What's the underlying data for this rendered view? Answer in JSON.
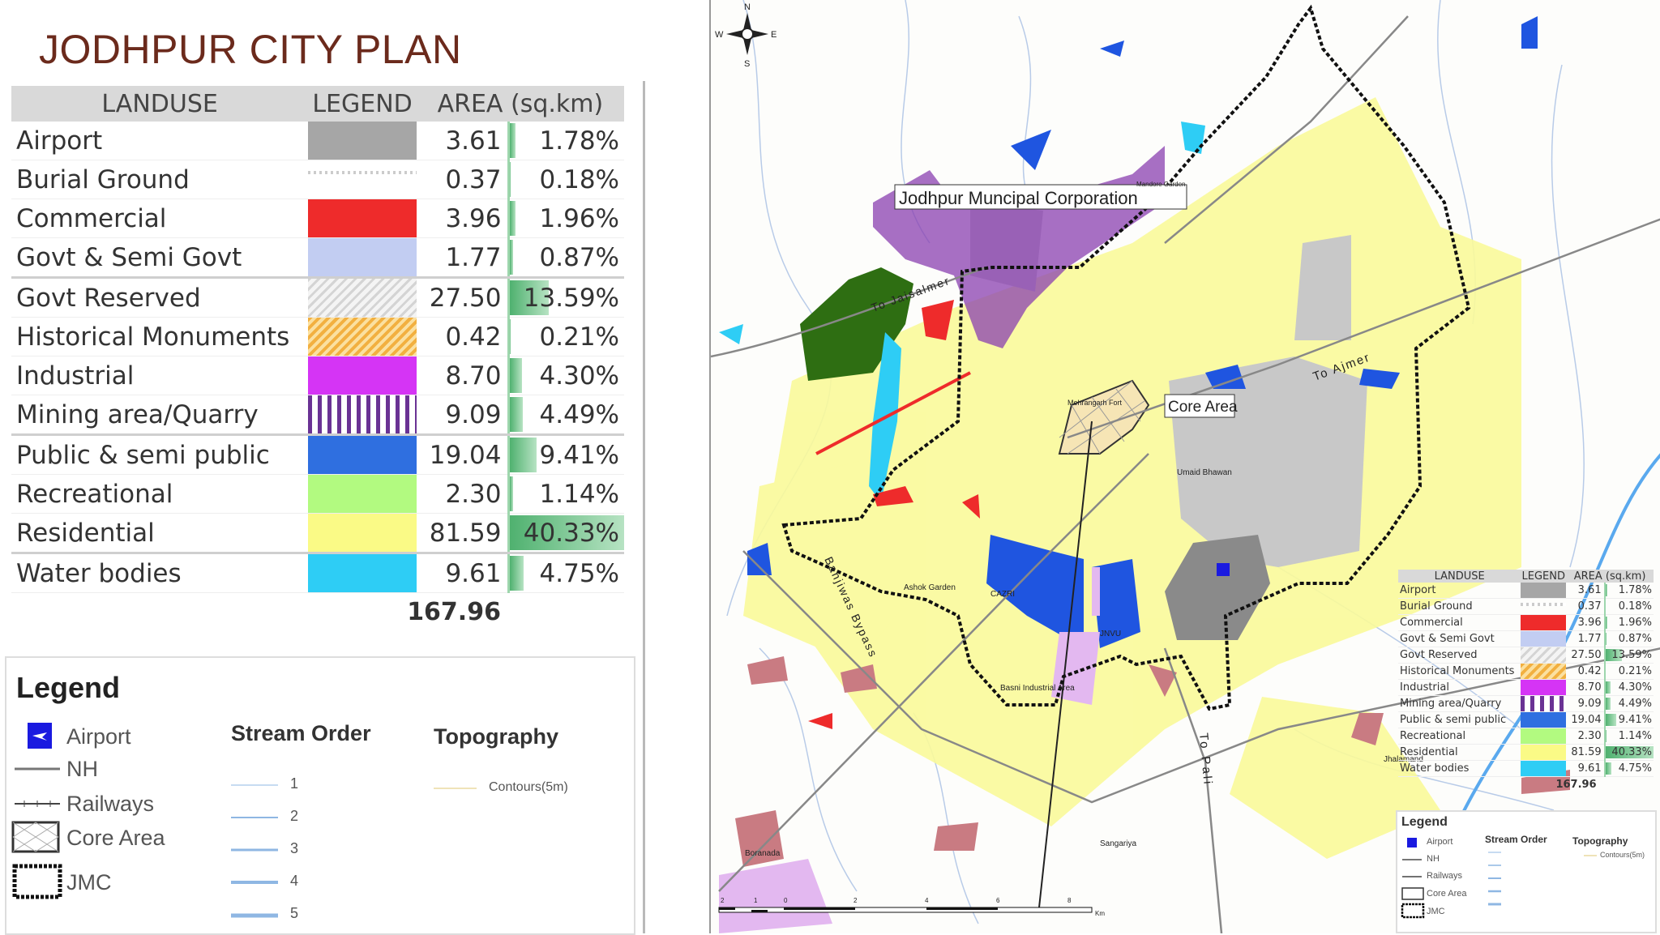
{
  "title": "JODHPUR CITY PLAN",
  "table": {
    "headers": [
      "LANDUSE",
      "LEGEND",
      "AREA (sq.km)"
    ],
    "rows": [
      {
        "name": "Airport",
        "swatch": "solid",
        "color": "#a6a6a6",
        "area": "3.61",
        "pct": "1.78%",
        "pct_value": 1.78
      },
      {
        "name": "Burial Ground",
        "swatch": "dots",
        "color": "#e0e0e0",
        "area": "0.37",
        "pct": "0.18%",
        "pct_value": 0.18
      },
      {
        "name": "Commercial",
        "swatch": "solid",
        "color": "#ee2b2b",
        "area": "3.96",
        "pct": "1.96%",
        "pct_value": 1.96
      },
      {
        "name": "Govt & Semi Govt",
        "swatch": "solid",
        "color": "#c2cdf2",
        "area": "1.77",
        "pct": "0.87%",
        "pct_value": 0.87
      },
      {
        "name": "Govt Reserved",
        "swatch": "hatch-grey",
        "color": "#cfcfcf",
        "area": "27.50",
        "pct": "13.59%",
        "pct_value": 13.59
      },
      {
        "name": "Historical Monuments",
        "swatch": "hatch-orange",
        "color": "#f5b94a",
        "area": "0.42",
        "pct": "0.21%",
        "pct_value": 0.21
      },
      {
        "name": "Industrial",
        "swatch": "solid",
        "color": "#d534f5",
        "area": "8.70",
        "pct": "4.30%",
        "pct_value": 4.3
      },
      {
        "name": "Mining area/Quarry",
        "swatch": "vstripes",
        "color": "#6a3294",
        "area": "9.09",
        "pct": "4.49%",
        "pct_value": 4.49
      },
      {
        "name": "Public & semi public",
        "swatch": "solid",
        "color": "#2f6fe0",
        "area": "19.04",
        "pct": "9.41%",
        "pct_value": 9.41
      },
      {
        "name": "Recreational",
        "swatch": "solid",
        "color": "#b2fa80",
        "area": "2.30",
        "pct": "1.14%",
        "pct_value": 1.14
      },
      {
        "name": "Residential",
        "swatch": "solid",
        "color": "#fafa86",
        "area": "81.59",
        "pct": "40.33%",
        "pct_value": 40.33
      },
      {
        "name": "Water bodies",
        "swatch": "solid",
        "color": "#2ecdf5",
        "area": "9.61",
        "pct": "4.75%",
        "pct_value": 4.75
      }
    ],
    "total": "167.96"
  },
  "legend": {
    "title": "Legend",
    "items": {
      "airport": "Airport",
      "nh": "NH",
      "railways": "Railways",
      "core_area": "Core Area",
      "jmc": "JMC"
    },
    "stream_order": {
      "title": "Stream Order",
      "levels": [
        "1",
        "2",
        "3",
        "4",
        "5"
      ]
    },
    "topography": {
      "title": "Topography",
      "contours": "Contours(5m)"
    }
  },
  "map": {
    "compass": {
      "n": "N",
      "s": "S",
      "e": "E",
      "w": "W"
    },
    "callouts": {
      "jmc": "Jodhpur Muncipal Corporation",
      "core": "Core Area"
    },
    "roads": {
      "jaisalmer": "To Jaisalmer",
      "ajmer": "To Ajmer",
      "pali": "To Pali",
      "bypass": "Banjiwas Bypass"
    },
    "places": {
      "fort": "Mehrangarh Fort",
      "umaid": "Umaid Bhawan",
      "ashok": "Ashok Garden",
      "cazri": "CAZRI",
      "jnvu": "JNVU",
      "basni": "Basni Industrial Area",
      "jhalamand": "Jhalamand",
      "sangariya": "Sangariya",
      "boranada": "Boranada",
      "mandore": "Mandore Garden"
    },
    "scale": {
      "ticks": [
        "2",
        "1",
        "0",
        "2",
        "4",
        "6",
        "8"
      ],
      "unit": "Km"
    },
    "colors": {
      "residential": "#fafa9a",
      "mining": "#8a3fb0",
      "forest": "#2e6e12",
      "water": "#2ecdf5",
      "built": "#c8c8c8",
      "public": "#1f55e0",
      "industrial": "#e3b8f0",
      "village": "#c97b82",
      "commercial": "#ee2b2b"
    }
  }
}
